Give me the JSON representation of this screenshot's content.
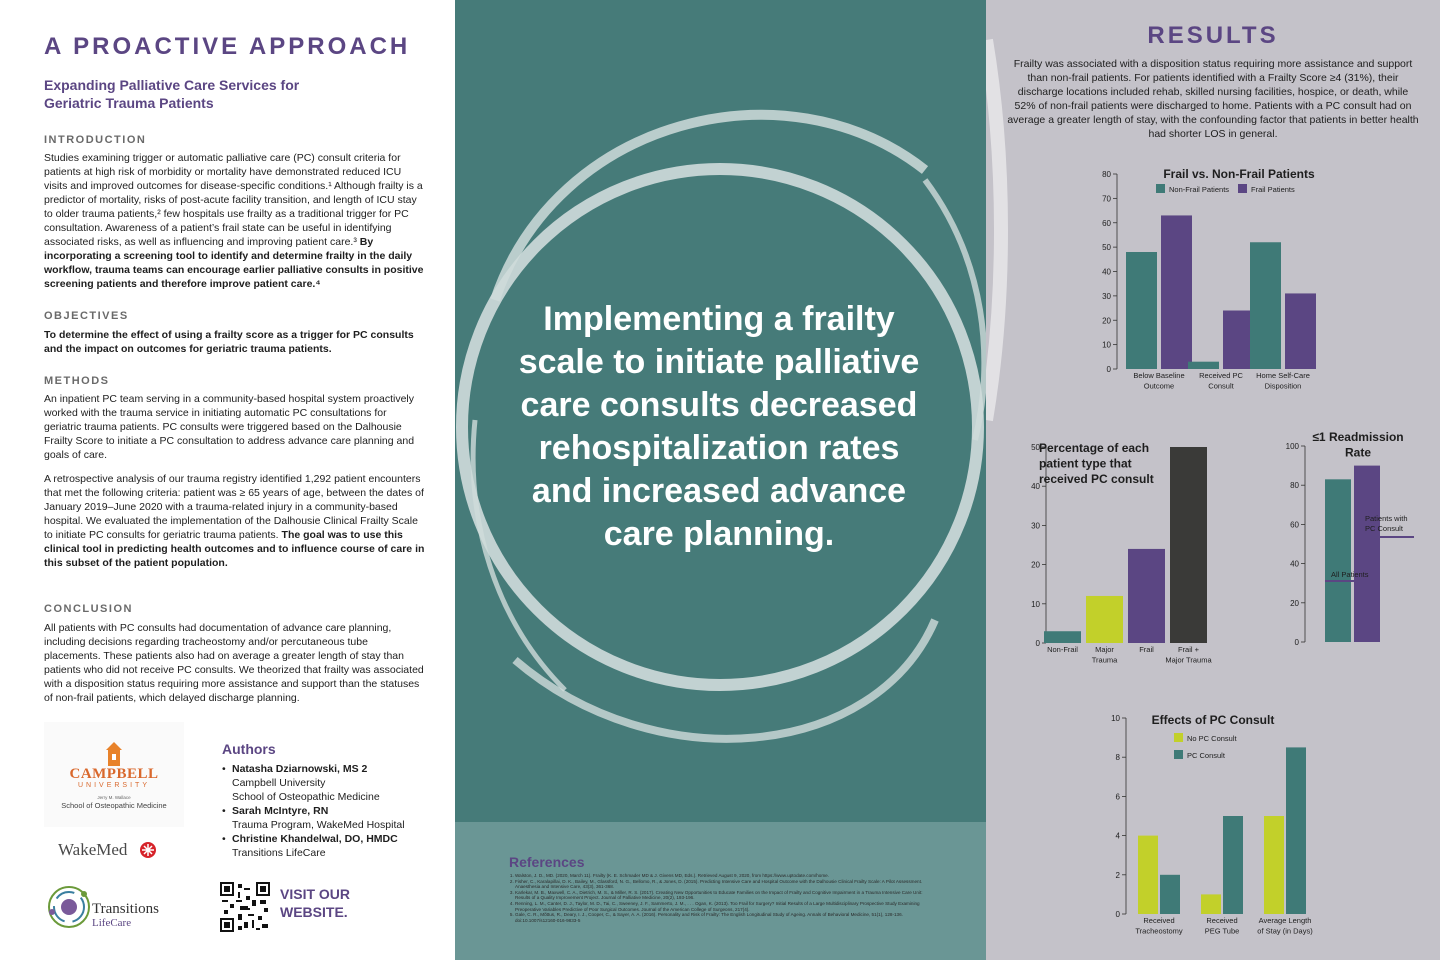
{
  "left": {
    "title": "A PROACTIVE APPROACH",
    "subtitle": "Expanding Palliative Care Services for Geriatric Trauma Patients",
    "intro_head": "INTRODUCTION",
    "intro_text": "Studies examining trigger or automatic palliative care (PC) consult criteria for patients at high risk of morbidity or mortality have demonstrated reduced ICU visits and improved outcomes for disease-specific conditions.¹ Although frailty is a predictor of mortality, risks of post-acute facility transition, and length of ICU stay to older trauma patients,² few hospitals use frailty as a traditional trigger for PC consultation. Awareness of a patient’s frail state can be useful in identifying associated risks, as well as influencing and improving patient care.³",
    "intro_bold": "By incorporating a screening tool to identify and determine frailty in the daily workflow, trauma teams can encourage earlier palliative consults in positive screening patients and therefore improve patient care.⁴",
    "objectives_head": "OBJECTIVES",
    "objectives_text": "To determine the effect of using a frailty score as a trigger for PC consults and the impact on outcomes for geriatric trauma patients.",
    "methods_head": "METHODS",
    "methods_text1": "An inpatient PC team serving in a community-based hospital system proactively worked with the trauma service in initiating automatic PC consultations for geriatric trauma patients. PC consults were triggered based on the Dalhousie Frailty Score to initiate a PC consultation to address advance care planning and goals of care.",
    "methods_text2": "A retrospective analysis of our trauma registry identified 1,292 patient encounters that met the following criteria: patient was ≥ 65 years of age, between the dates of January 2019–June 2020 with a trauma-related injury in a community-based hospital. We evaluated the implementation of the Dalhousie Clinical Frailty Scale to initiate PC consults for geriatric trauma patients.",
    "methods_bold": "The goal was to use this clinical tool in predicting health outcomes and to influence course of care in this subset of the patient population.",
    "conclusion_head": "CONCLUSION",
    "conclusion_text": "All patients with PC consults had documentation of advance care planning, including decisions regarding tracheostomy and/or percutaneous tube placements. These patients also had on average a greater length of stay than patients who did not receive PC consults. We theorized that frailty was associated with a disposition status requiring more assistance and support than the statuses of non-frail patients, which delayed discharge planning.",
    "logos": {
      "campbell_name": "CAMPBELL",
      "campbell_univ": "UNIVERSITY",
      "campbell_jerry": "Jerry M. Wallace",
      "campbell_school": "School of Osteopathic Medicine",
      "wakemed": "WakeMed",
      "transitions": "Transitions",
      "lifecare": "LifeCare"
    },
    "authors_head": "Authors",
    "authors": [
      {
        "name": "Natasha Dziarnowski, MS 2",
        "aff1": "Campbell University",
        "aff2": "School of Osteopathic Medicine"
      },
      {
        "name": "Sarah McIntyre, RN",
        "aff1": "Trauma Program, WakeMed Hospital",
        "aff2": ""
      },
      {
        "name": "Christine Khandelwal, DO, HMDC",
        "aff1": "Transitions LifeCare",
        "aff2": ""
      }
    ],
    "visit": "VISIT OUR WEBSITE."
  },
  "middle": {
    "headline_lines": [
      "Implementing a frailty",
      "scale to initiate palliative",
      "care consults decreased",
      "rehospitalization rates",
      "and increased advance",
      "care planning."
    ],
    "refs_title": "References",
    "refs": [
      "Walston, J. D., MD. (2020, March 11). Frailty (K. E. Schmader MD & J. Givens MD, Eds.). Retrieved August 9, 2020, from https://www.uptodate.com/home.",
      "Fisher, C., Karalapillai, D. K., Bailey, M., Glassford, N. G., Bellomo, R., & Jones, D. (2015). Predicting Intensive Care and Hospital Outcome with the Dalhousie Clinical Frailty Scale: A Pilot Assessment. Anaesthesia and Intensive Care, 43(3), 361-368.",
      "Karlekar, M. B., Maxwell, C. A., Dietrich, M. S., & Miller, R. S. (2017). Creating New Opportunities to Educate Families on the Impact of Frailty and Cognitive Impairment in a Trauma Intensive Care Unit: Results of a Quality Improvement Project. Journal of Palliative Medicine, 20(2), 193-196.",
      "Renning, L. M., Canter, D. J., Taylor, M. D., Tai, C., Sweeney, J. F., Sammerto, J. M., . . . Ogan, K. (2013). Too Frail for Surgery? Initial Results of a Large Multidisciplinary Prospective Study Examining Preoperative Variables Predictive of Poor Surgical Outcomes. Journal of the American College of Surgeons, 217(4).",
      "Gale, C. R., Mõttus, R., Deary, I. J., Cooper, C., & Sayer, A. A. (2016). Personality and Risk of Frailty: The English Longitudinal Study of Ageing. Annals of Behavioral Medicine, 51(1), 128-136. doi:10.1007/s12160-016-9833-5"
    ]
  },
  "right": {
    "title": "RESULTS",
    "text": "Frailty was associated with a disposition status requiring more assistance and support than non-frail patients. For patients identified with a Frailty Score ≥4 (31%), their discharge locations included rehab, skilled nursing facilities, hospice, or death, while 52% of non-frail patients were discharged to home. Patients with a PC consult had on average a greater length of stay, with the confounding factor that patients in better health had shorter LOS in general."
  },
  "colors": {
    "purple": "#5b4683",
    "teal": "#3f7a77",
    "teal_bg": "#467b79",
    "lime": "#c2d02a",
    "dark": "#3a3a38",
    "gray_bg": "#c4c2c9"
  },
  "chart_data": [
    {
      "type": "bar",
      "title": "Frail vs. Non-Frail Patients",
      "categories": [
        "Below Baseline\nOutcome",
        "Received PC\nConsult",
        "Home Self-Care\nDisposition"
      ],
      "series": [
        {
          "name": "Non-Frail Patients",
          "color": "#3f7a77",
          "values": [
            48,
            3,
            52
          ]
        },
        {
          "name": "Frail Patients",
          "color": "#5b4683",
          "values": [
            63,
            24,
            31
          ]
        }
      ],
      "ylim": [
        0,
        80
      ],
      "yticks": [
        0,
        10,
        20,
        30,
        40,
        50,
        60,
        70,
        80
      ],
      "legend": "top"
    },
    {
      "type": "bar",
      "title": "Percentage of each\npatient type that\nreceived PC consult",
      "categories": [
        "Non-Frail",
        "Major\nTrauma",
        "Frail",
        "Frail +\nMajor Trauma"
      ],
      "values": [
        3,
        12,
        24,
        50
      ],
      "colors": [
        "#3f7a77",
        "#c2d02a",
        "#5b4683",
        "#3a3a38"
      ],
      "ylim": [
        0,
        50
      ],
      "yticks": [
        0,
        10,
        20,
        30,
        40,
        50
      ]
    },
    {
      "type": "bar",
      "title": "≤1 Readmission\nRate",
      "categories": [
        "All Patients",
        "Patients with\nPC Consult"
      ],
      "values": [
        83,
        90
      ],
      "colors": [
        "#3f7a77",
        "#5b4683"
      ],
      "ylim": [
        0,
        100
      ],
      "yticks": [
        0,
        20,
        40,
        60,
        80,
        100
      ]
    },
    {
      "type": "bar",
      "title": "Effects of PC Consult",
      "categories": [
        "Received\nTracheostomy",
        "Received\nPEG Tube",
        "Average Length\nof Stay (in Days)"
      ],
      "series": [
        {
          "name": "No PC Consult",
          "color": "#c2d02a",
          "values": [
            4,
            1,
            5
          ]
        },
        {
          "name": "PC Consult",
          "color": "#3f7a77",
          "values": [
            2,
            5,
            8.5
          ]
        }
      ],
      "ylim": [
        0,
        10
      ],
      "yticks": [
        0,
        2,
        4,
        6,
        8,
        10
      ],
      "legend": "top-left"
    }
  ]
}
